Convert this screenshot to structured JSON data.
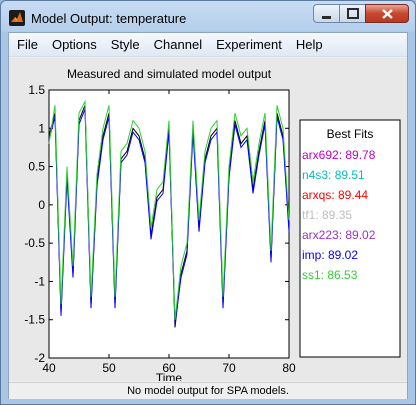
{
  "window": {
    "title": "Model Output: temperature"
  },
  "menu": {
    "items": [
      "File",
      "Options",
      "Style",
      "Channel",
      "Experiment",
      "Help"
    ]
  },
  "status": {
    "text": "No model output for SPA models."
  },
  "colors": {
    "window_frame": "#a9c6e6",
    "plot_bg": "#ffffff",
    "measured": "#000000",
    "close_button": "#c7462f"
  },
  "icons": {
    "app": "matlab-logo-icon",
    "minimize": "minimize-icon",
    "maximize": "maximize-icon",
    "close": "close-icon"
  },
  "best_fits": {
    "title": "Best Fits",
    "entries": [
      {
        "label": "arx692: 89.78",
        "color": "#c000c0"
      },
      {
        "label": "n4s3: 89.51",
        "color": "#00bfbf"
      },
      {
        "label": "arxqs: 89.44",
        "color": "#ff0000"
      },
      {
        "label": "tf1: 89.35",
        "color": "#bfbfbf"
      },
      {
        "label": "arx223: 89.02",
        "color": "#9932cc"
      },
      {
        "label": "imp: 89.02",
        "color": "#0000ff"
      },
      {
        "label": "ss1: 86.53",
        "color": "#33cc33"
      }
    ]
  },
  "chart_data": {
    "type": "line",
    "title": "Measured and simulated model output",
    "xlabel": "Time",
    "ylabel": "",
    "xlim": [
      40,
      80
    ],
    "ylim": [
      -2,
      1.5
    ],
    "x_ticks": [
      "40",
      "50",
      "60",
      "70",
      "80"
    ],
    "y_ticks": [
      "-2",
      "-1.5",
      "-1",
      "-0.5",
      "0",
      "0.5",
      "1",
      "1.5"
    ],
    "grid": false,
    "x": [
      40,
      41,
      42,
      43,
      44,
      45,
      46,
      47,
      48,
      49,
      50,
      51,
      52,
      53,
      54,
      55,
      56,
      57,
      58,
      59,
      60,
      61,
      62,
      63,
      64,
      65,
      66,
      67,
      68,
      69,
      70,
      71,
      72,
      73,
      74,
      75,
      76,
      77,
      78,
      79,
      80
    ],
    "series": [
      {
        "name": "Measured",
        "color": "#000000",
        "values": [
          0.9,
          1.2,
          -1.4,
          0.4,
          -0.9,
          1.1,
          1.3,
          -1.3,
          0.3,
          0.9,
          1.2,
          -1.3,
          0.6,
          0.7,
          1.0,
          0.9,
          0.6,
          -0.4,
          0.1,
          0.2,
          1.0,
          -1.6,
          -0.9,
          -0.6,
          1.0,
          -0.3,
          0.6,
          0.9,
          1.0,
          -1.3,
          0.4,
          1.1,
          0.8,
          0.9,
          0.2,
          0.7,
          1.1,
          -0.7,
          1.2,
          0.9,
          -0.3
        ]
      },
      {
        "name": "imp: 89.02",
        "color": "#0000ff",
        "values": [
          0.85,
          1.15,
          -1.45,
          0.35,
          -0.95,
          1.05,
          1.25,
          -1.35,
          0.25,
          0.85,
          1.15,
          -1.35,
          0.55,
          0.65,
          0.95,
          0.85,
          0.55,
          -0.45,
          0.05,
          0.15,
          0.95,
          -1.55,
          -0.95,
          -0.65,
          0.95,
          -0.35,
          0.55,
          0.85,
          0.95,
          -1.35,
          0.35,
          1.05,
          0.75,
          0.85,
          0.15,
          0.65,
          1.05,
          -0.75,
          1.15,
          0.85,
          -0.35
        ]
      },
      {
        "name": "ss1: 86.53",
        "color": "#33cc33",
        "values": [
          0.8,
          1.3,
          -1.3,
          0.5,
          -0.8,
          1.2,
          1.35,
          -1.2,
          0.4,
          1.0,
          1.3,
          -1.2,
          0.7,
          0.8,
          1.1,
          1.0,
          0.7,
          -0.3,
          0.2,
          0.3,
          1.1,
          -1.5,
          -0.8,
          -0.5,
          1.1,
          -0.2,
          0.7,
          1.0,
          1.1,
          -1.2,
          0.5,
          1.2,
          0.9,
          1.0,
          0.3,
          0.8,
          1.2,
          -0.6,
          1.3,
          1.0,
          -0.2
        ]
      }
    ]
  }
}
